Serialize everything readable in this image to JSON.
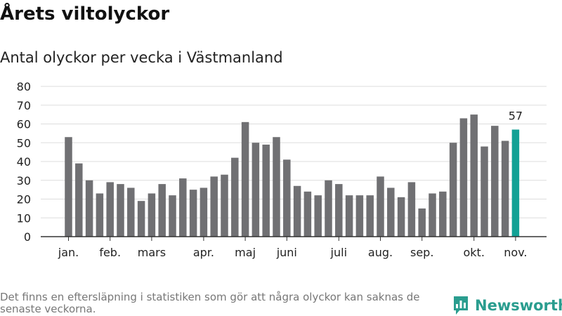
{
  "title": "Årets viltolyckor",
  "subtitle": "Antal olyckor per vecka i Västmanland",
  "footnote": "Det finns en eftersläpning i statistiken som gör att några olyckor kan saknas de senaste veckorna.",
  "brand": {
    "name": "Newsworthy",
    "icon": "bar-chart-logo-icon"
  },
  "colors": {
    "bar": "#707073",
    "highlight": "#12a195",
    "grid": "#dddddd",
    "axis": "#333333",
    "brand": "#2a9d8f"
  },
  "chart_data": {
    "type": "bar",
    "title": "Antal olyckor per vecka i Västmanland",
    "xlabel": "",
    "ylabel": "",
    "ylim": [
      0,
      80
    ],
    "yticks": [
      0,
      10,
      20,
      30,
      40,
      50,
      60,
      70,
      80
    ],
    "grid": true,
    "values": [
      53,
      39,
      30,
      23,
      29,
      28,
      26,
      19,
      23,
      28,
      22,
      31,
      25,
      26,
      32,
      33,
      42,
      61,
      50,
      49,
      53,
      41,
      27,
      24,
      22,
      30,
      28,
      22,
      22,
      22,
      32,
      26,
      21,
      29,
      15,
      23,
      24,
      50,
      63,
      65,
      48,
      59,
      51,
      57
    ],
    "highlight_index": 43,
    "highlight_label": "57",
    "month_labels": [
      {
        "label": "jan.",
        "week": 1
      },
      {
        "label": "feb.",
        "week": 5
      },
      {
        "label": "mars",
        "week": 9
      },
      {
        "label": "apr.",
        "week": 14
      },
      {
        "label": "maj",
        "week": 18
      },
      {
        "label": "juni",
        "week": 22
      },
      {
        "label": "juli",
        "week": 27
      },
      {
        "label": "aug.",
        "week": 31
      },
      {
        "label": "sep.",
        "week": 35
      },
      {
        "label": "okt.",
        "week": 40
      },
      {
        "label": "nov.",
        "week": 44
      }
    ]
  }
}
